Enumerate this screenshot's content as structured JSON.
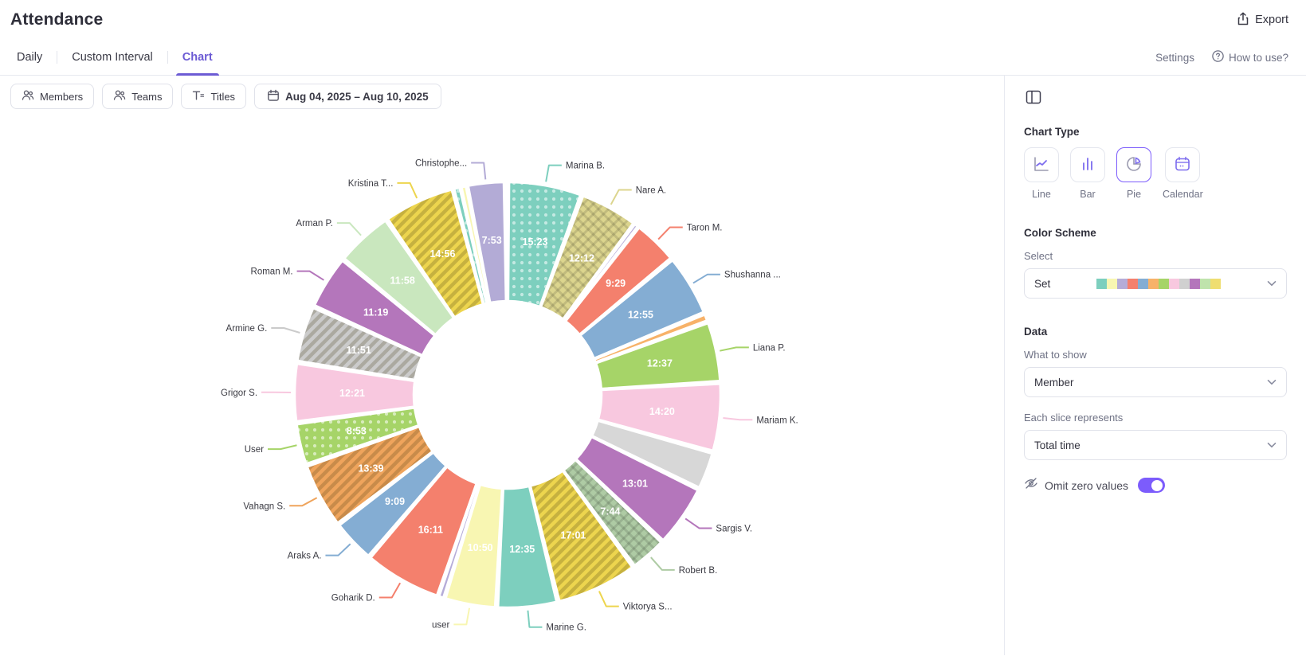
{
  "header": {
    "title": "Attendance",
    "export_label": "Export"
  },
  "tabs": [
    {
      "label": "Daily",
      "active": false
    },
    {
      "label": "Custom Interval",
      "active": false
    },
    {
      "label": "Chart",
      "active": true
    }
  ],
  "tab_actions": {
    "settings_label": "Settings",
    "howto_label": "How to use?"
  },
  "filters": {
    "members_label": "Members",
    "teams_label": "Teams",
    "titles_label": "Titles",
    "date_range": "Aug 04, 2025 – Aug 10, 2025"
  },
  "sidebar": {
    "chart_type": {
      "heading": "Chart Type",
      "options": [
        {
          "label": "Line",
          "selected": false
        },
        {
          "label": "Bar",
          "selected": false
        },
        {
          "label": "Pie",
          "selected": true
        },
        {
          "label": "Calendar",
          "selected": false
        }
      ]
    },
    "color_scheme": {
      "heading": "Color Scheme",
      "select_label": "Select",
      "value": "Set",
      "swatches": [
        "#7DCFBE",
        "#F8F6B2",
        "#B5ACD8",
        "#F4806D",
        "#84ADD3",
        "#F7B269",
        "#A6D468",
        "#F8C8DF",
        "#D0D0D0",
        "#B476BB",
        "#BFE3AC",
        "#EFDE71"
      ]
    },
    "data": {
      "heading": "Data",
      "what_to_show_label": "What to show",
      "what_to_show_value": "Member",
      "slice_label": "Each slice represents",
      "slice_value": "Total time",
      "omit_label": "Omit zero values",
      "omit_on": true
    }
  },
  "accent": "#7C5CFC",
  "chart_data": {
    "type": "pie",
    "style": "donut",
    "value_unit": "hours:minutes",
    "legend_position": "outside-labels",
    "slices": [
      {
        "label": "Marina B.",
        "value": "15:23",
        "color": "#7DCFBE",
        "pattern": "dots"
      },
      {
        "label": "Nare A.",
        "value": "12:12",
        "color": "#DCD58E",
        "pattern": "cross"
      },
      {
        "label": "",
        "value": "",
        "minutes": 55,
        "color": "#B5ACD8",
        "pattern": "solid"
      },
      {
        "label": "Taron M.",
        "value": "9:29",
        "color": "#F4806D",
        "pattern": "solid"
      },
      {
        "label": "Shushanna ...",
        "value": "12:55",
        "color": "#84ADD3",
        "pattern": "solid"
      },
      {
        "label": "",
        "value": "",
        "minutes": 110,
        "color": "#F7B269",
        "pattern": "solid"
      },
      {
        "label": "Liana P.",
        "value": "12:37",
        "color": "#A6D468",
        "pattern": "solid"
      },
      {
        "label": "Mariam K.",
        "value": "14:20",
        "color": "#F8C8DF",
        "pattern": "solid"
      },
      {
        "label": "",
        "value": "",
        "minutes": 480,
        "color": "#D7D7D7",
        "pattern": "solid"
      },
      {
        "label": "Sargis V.",
        "value": "13:01",
        "color": "#B476BB",
        "pattern": "solid"
      },
      {
        "label": "Robert B.",
        "value": "7:44",
        "color": "#AECBA4",
        "pattern": "cross"
      },
      {
        "label": "Viktorya S...",
        "value": "17:01",
        "color": "#EDD54E",
        "pattern": "stripes"
      },
      {
        "label": "Marine G.",
        "value": "12:35",
        "color": "#7DCFBE",
        "pattern": "solid"
      },
      {
        "label": "user",
        "value": "10:50",
        "color": "#F8F6B2",
        "pattern": "solid"
      },
      {
        "label": "",
        "value": "",
        "minutes": 75,
        "color": "#B5ACD8",
        "pattern": "solid"
      },
      {
        "label": "Goharik D.",
        "value": "16:11",
        "color": "#F4806D",
        "pattern": "solid"
      },
      {
        "label": "Araks A.",
        "value": "9:09",
        "color": "#84ADD3",
        "pattern": "solid"
      },
      {
        "label": "Vahagn S.",
        "value": "13:39",
        "color": "#EFA45C",
        "pattern": "stripes"
      },
      {
        "label": "User",
        "value": "8:53",
        "color": "#A6D468",
        "pattern": "dots"
      },
      {
        "label": "Grigor S.",
        "value": "12:21",
        "color": "#F8C8DF",
        "pattern": "solid"
      },
      {
        "label": "Armine G.",
        "value": "11:51",
        "color": "#CBCBCB",
        "pattern": "stripes"
      },
      {
        "label": "Roman M.",
        "value": "11:19",
        "color": "#B476BB",
        "pattern": "solid"
      },
      {
        "label": "Arman P.",
        "value": "11:58",
        "color": "#C9E7BE",
        "pattern": "solid"
      },
      {
        "label": "Kristina T...",
        "value": "14:56",
        "color": "#EDD54E",
        "pattern": "stripes"
      },
      {
        "label": "",
        "value": "",
        "minutes": 95,
        "color": "#7DCFBE",
        "pattern": "dots"
      },
      {
        "label": "",
        "value": "",
        "minutes": 75,
        "color": "#F8F6B2",
        "pattern": "solid"
      },
      {
        "label": "Christophe...",
        "value": "7:53",
        "color": "#B3ABD6",
        "pattern": "solid"
      },
      {
        "label": "",
        "value": "",
        "minutes": 28,
        "color": "#E4544A",
        "pattern": "solid"
      }
    ]
  }
}
